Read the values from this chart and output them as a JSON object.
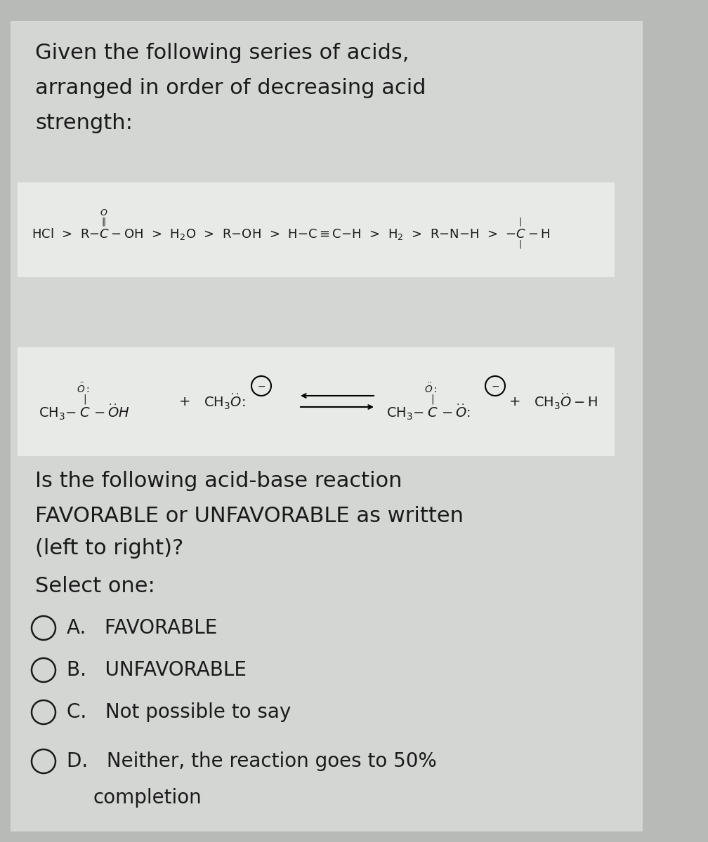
{
  "bg_color": "#b8bab8",
  "panel_color": "#d4d6d4",
  "white_box_color": "#e8eae8",
  "text_color": "#1a1a1a",
  "title_lines": [
    "Given the following series of acids,",
    "arranged in order of decreasing acid",
    "strength:"
  ],
  "question_lines": [
    "Is the following acid-base reaction",
    "FAVORABLE or UNFAVORABLE as written",
    "(left to right)?"
  ],
  "select_label": "Select one:",
  "options": [
    "A. FAVORABLE",
    "B. UNFAVORABLE",
    "C. Not possible to say",
    "D. Neither, the reaction goes to 50%\n        completion"
  ],
  "font_size_title": 22,
  "font_size_question": 22,
  "font_size_options": 20,
  "font_size_chem": 11
}
